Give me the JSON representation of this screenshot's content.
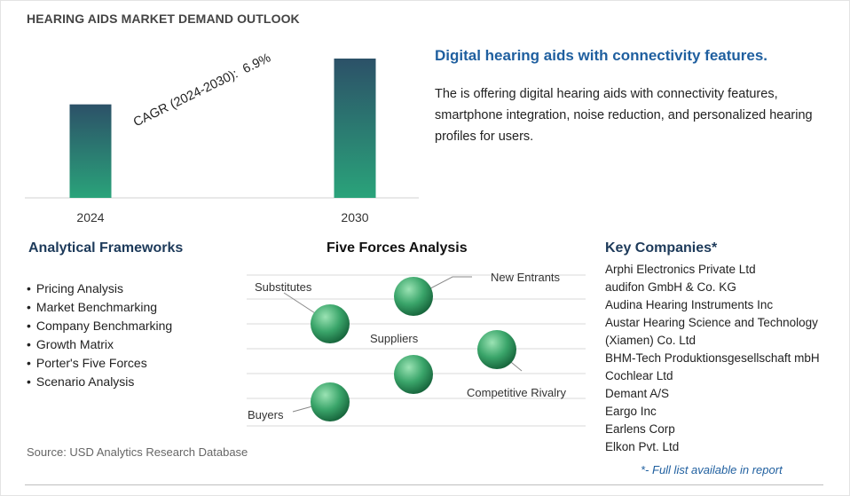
{
  "title": "HEARING AIDS MARKET DEMAND OUTLOOK",
  "chart_data": {
    "type": "bar",
    "categories": [
      "2024",
      "2030"
    ],
    "values": [
      1.0,
      1.49
    ],
    "cagr_label": "CAGR (2024-2030):",
    "cagr_value": "6.9%",
    "colors": {
      "bar_top": "#2c5168",
      "bar_bottom": "#2aa37a",
      "axis": "#d0d0d0"
    }
  },
  "headline": "Digital hearing aids with connectivity features.",
  "description": "The is offering digital hearing aids with connectivity features, smartphone integration, noise reduction, and personalized hearing profiles for users.",
  "frameworks": {
    "heading": "Analytical Frameworks",
    "items": [
      "Pricing Analysis",
      "Market Benchmarking",
      "Company Benchmarking",
      "Growth Matrix",
      "Porter's Five Forces",
      "Scenario Analysis"
    ]
  },
  "five_forces": {
    "heading": "Five Forces Analysis",
    "substitutes": "Substitutes",
    "new_entrants": "New Entrants",
    "suppliers": "Suppliers",
    "competitive_rivalry": "Competitive Rivalry",
    "buyers": "Buyers",
    "colors": {
      "sphere_light": "#9be3b4",
      "sphere_mid": "#3aa56a",
      "sphere_dark": "#17653c"
    }
  },
  "companies": {
    "heading": "Key Companies*",
    "items": [
      "Arphi Electronics Private Ltd",
      "audifon GmbH & Co. KG",
      "Audina Hearing Instruments Inc",
      "Austar Hearing Science and Technology",
      "(Xiamen) Co. Ltd",
      "BHM-Tech Produktionsgesellschaft mbH",
      "Cochlear Ltd",
      "Demant A/S",
      "Eargo Inc",
      "Earlens Corp",
      "Elkon Pvt. Ltd"
    ],
    "note": "*- Full list available in report"
  },
  "source": "Source: USD Analytics Research Database"
}
